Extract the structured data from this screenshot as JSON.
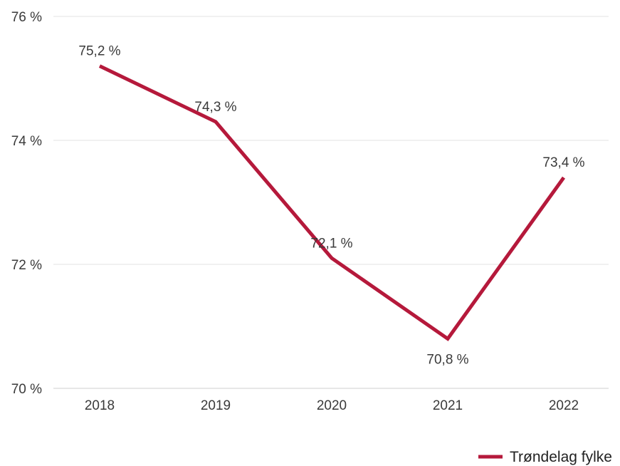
{
  "chart_data": {
    "type": "line",
    "categories": [
      "2018",
      "2019",
      "2020",
      "2021",
      "2022"
    ],
    "series": [
      {
        "name": "Trøndelag fylke",
        "color": "#b5193b",
        "values": [
          75.2,
          74.3,
          72.1,
          70.8,
          73.4
        ],
        "labels": [
          "75,2 %",
          "74,3 %",
          "72,1 %",
          "70,8 %",
          "73,4 %"
        ]
      }
    ],
    "y_ticks": [
      {
        "value": 70,
        "label": "70 %"
      },
      {
        "value": 72,
        "label": "72 %"
      },
      {
        "value": 74,
        "label": "74 %"
      },
      {
        "value": 76,
        "label": "76 %"
      }
    ],
    "ylim": [
      70,
      76
    ],
    "grid": true,
    "legend_position": "bottom-right",
    "title": "",
    "xlabel": "",
    "ylabel": ""
  }
}
